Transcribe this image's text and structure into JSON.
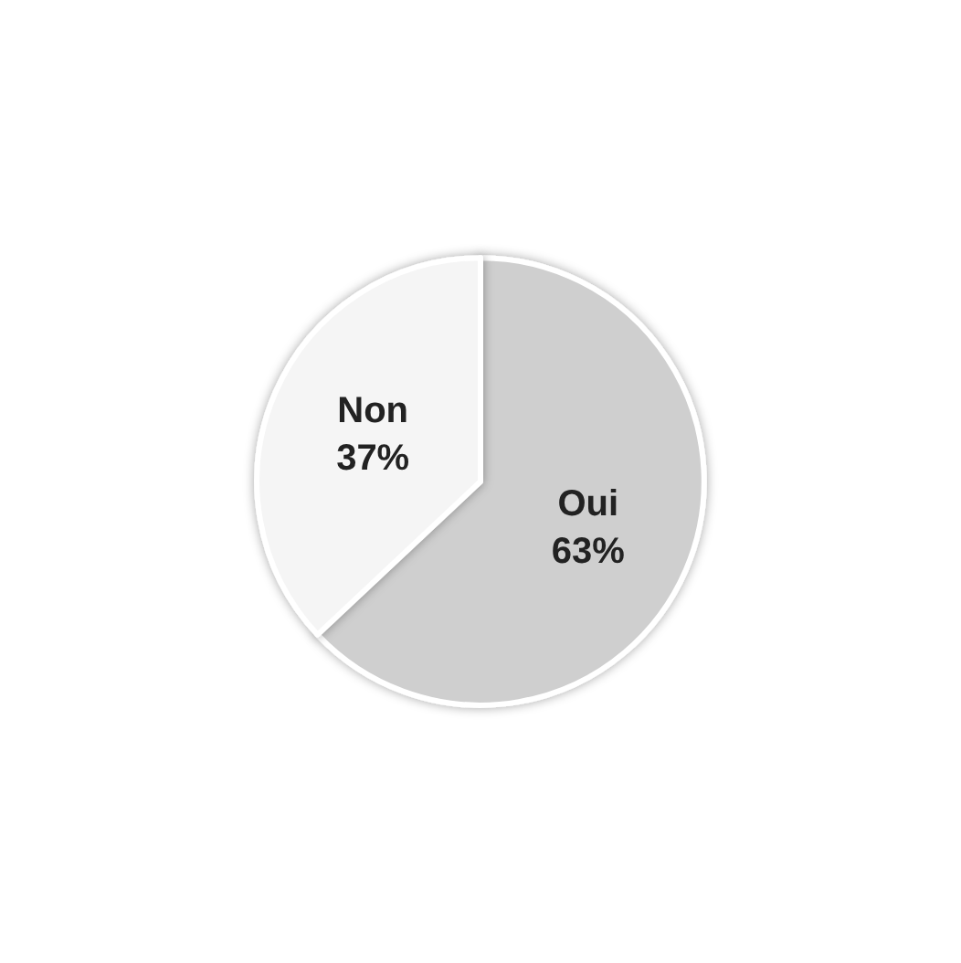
{
  "chart_data": {
    "type": "pie",
    "categories": [
      "Oui",
      "Non"
    ],
    "values": [
      63,
      37
    ],
    "value_labels": [
      "63%",
      "37%"
    ],
    "colors": [
      "#cfcfcf",
      "#f5f5f5"
    ],
    "legend": false
  }
}
